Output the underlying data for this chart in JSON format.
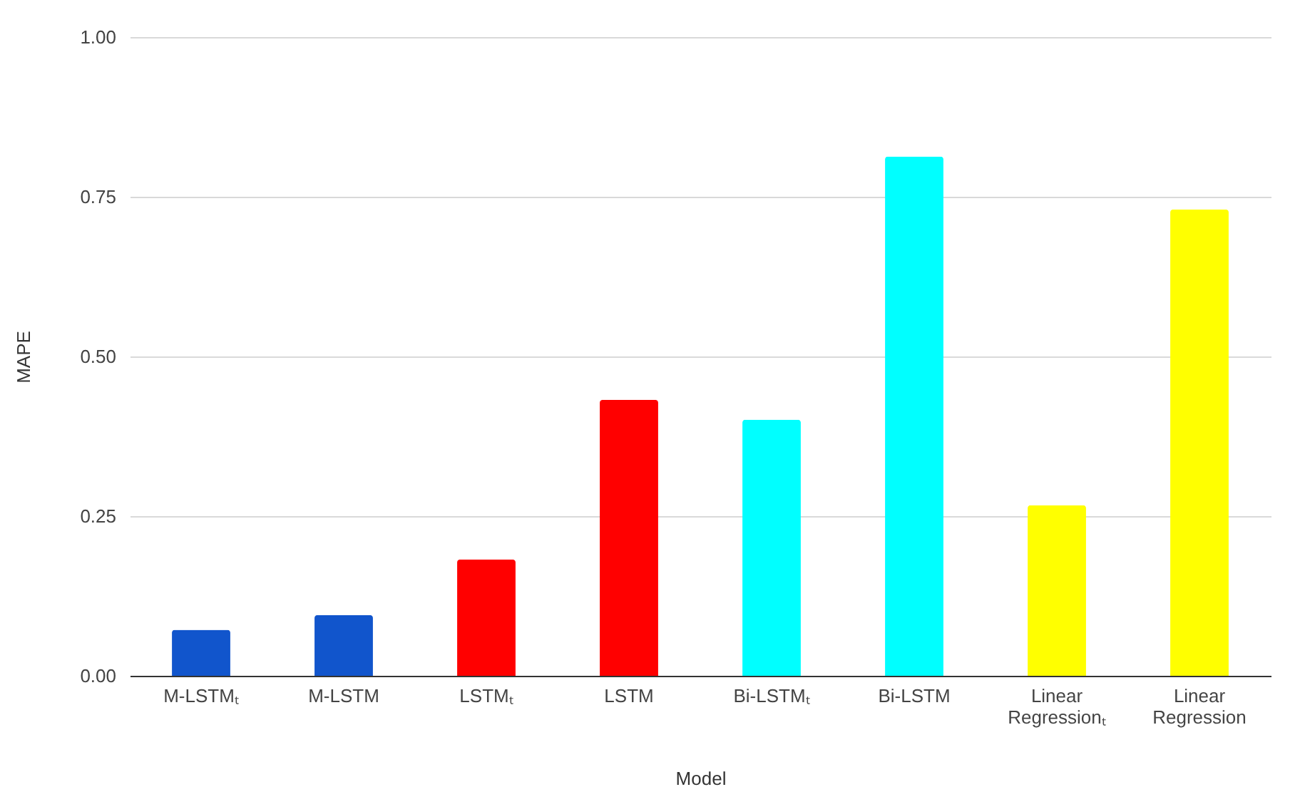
{
  "chart_data": {
    "type": "bar",
    "xlabel": "Model",
    "ylabel": "MAPE",
    "categories": [
      "M-LSTMₜ",
      "M-LSTM",
      "LSTMₜ",
      "LSTM",
      "Bi-LSTMₜ",
      "Bi-LSTM",
      "Linear Regressionₜ",
      "Linear Regression"
    ],
    "values": [
      0.072,
      0.095,
      0.182,
      0.432,
      0.401,
      0.813,
      0.267,
      0.73
    ],
    "colors": [
      "#1155cc",
      "#1155cc",
      "#ff0000",
      "#ff0000",
      "#00ffff",
      "#00ffff",
      "#ffff00",
      "#ffff00"
    ],
    "ylim": [
      0,
      1
    ],
    "yticks": [
      {
        "value": 0,
        "label": "0.00"
      },
      {
        "value": 0.25,
        "label": "0.25"
      },
      {
        "value": 0.5,
        "label": "0.50"
      },
      {
        "value": 0.75,
        "label": "0.75"
      },
      {
        "value": 1,
        "label": "1.00"
      }
    ],
    "grid": "y"
  }
}
